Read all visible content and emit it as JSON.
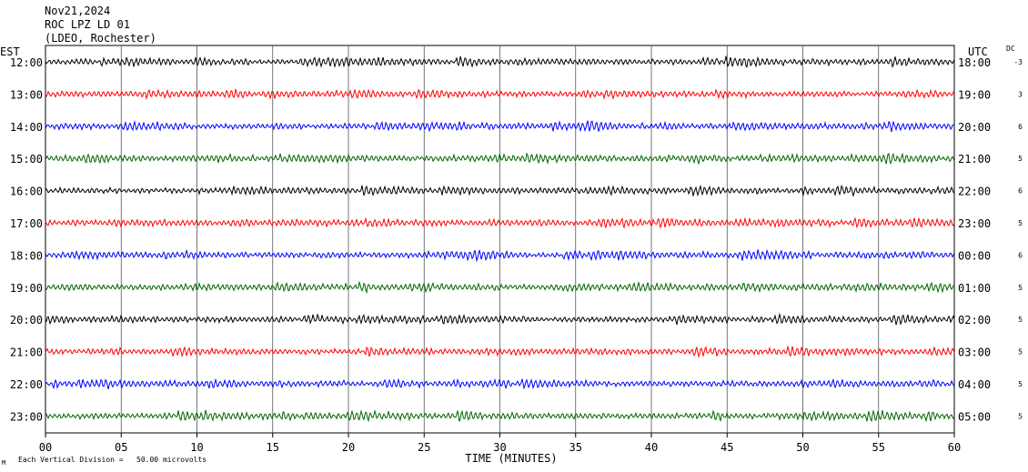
{
  "header": {
    "line1": "Nov21,2024",
    "line2": "ROC LPZ LD 01",
    "line3": "(LDEO, Rochester)"
  },
  "labels": {
    "left_zone": "EST",
    "right_zone": "UTC",
    "dc_header": "DC",
    "x_title": "TIME (MINUTES)",
    "footer_mark": "M",
    "footer_scale": "Each Vertical Division =   50.00 microvolts"
  },
  "chart_data": {
    "type": "line",
    "title": "ROC LPZ LD 01",
    "xlabel": "TIME (MINUTES)",
    "ylabel": "",
    "xlim": [
      0,
      60
    ],
    "x_ticks": [
      "00",
      "05",
      "10",
      "15",
      "20",
      "25",
      "30",
      "35",
      "40",
      "45",
      "50",
      "55",
      "60"
    ],
    "grid": true,
    "rows": [
      {
        "est": "12:00",
        "utc": "18:00",
        "dc": "-3",
        "color": "#000000"
      },
      {
        "est": "13:00",
        "utc": "19:00",
        "dc": "3",
        "color": "#ff0000"
      },
      {
        "est": "14:00",
        "utc": "20:00",
        "dc": "6",
        "color": "#0000ff"
      },
      {
        "est": "15:00",
        "utc": "21:00",
        "dc": "5",
        "color": "#006400"
      },
      {
        "est": "16:00",
        "utc": "22:00",
        "dc": "6",
        "color": "#000000"
      },
      {
        "est": "17:00",
        "utc": "23:00",
        "dc": "5",
        "color": "#ff0000"
      },
      {
        "est": "18:00",
        "utc": "00:00",
        "dc": "6",
        "color": "#0000ff"
      },
      {
        "est": "19:00",
        "utc": "01:00",
        "dc": "5",
        "color": "#006400"
      },
      {
        "est": "20:00",
        "utc": "02:00",
        "dc": "5",
        "color": "#000000"
      },
      {
        "est": "21:00",
        "utc": "03:00",
        "dc": "5",
        "color": "#ff0000"
      },
      {
        "est": "22:00",
        "utc": "04:00",
        "dc": "5",
        "color": "#0000ff"
      },
      {
        "est": "23:00",
        "utc": "05:00",
        "dc": "5",
        "color": "#006400"
      }
    ]
  }
}
